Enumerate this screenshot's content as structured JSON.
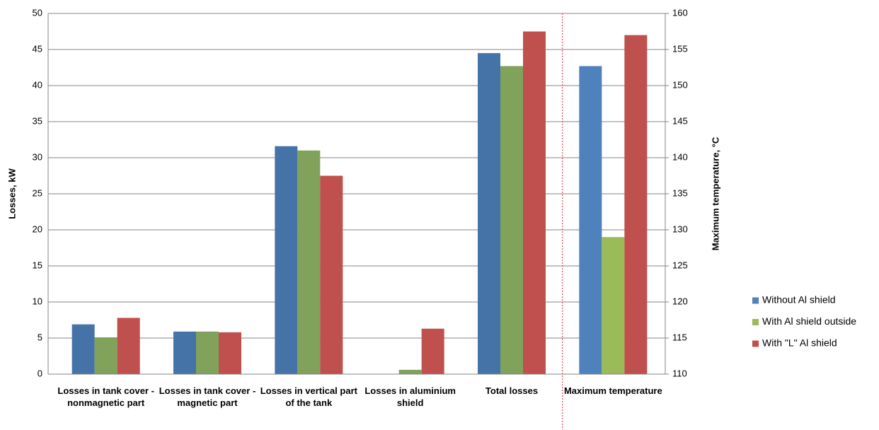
{
  "chart_data": [
    {
      "type": "bar",
      "axis_title": "Losses, kW",
      "categories": [
        "Losses in tank cover  - nonmagnetic part",
        "Losses in tank cover - magnetic part",
        "Losses in vertical part of the tank",
        "Losses in aluminium shield",
        "Total losses"
      ],
      "series": [
        {
          "color": "#4573a7",
          "values": [
            6.9,
            5.9,
            31.6,
            0,
            44.5
          ]
        },
        {
          "color": "#80a25a",
          "values": [
            5.1,
            5.9,
            31.0,
            0.6,
            42.7
          ]
        },
        {
          "color": "#c0504d",
          "values": [
            7.8,
            5.8,
            27.5,
            6.3,
            47.5
          ]
        }
      ],
      "ylim": [
        0,
        50
      ],
      "yticks": [
        0,
        5,
        10,
        15,
        20,
        25,
        30,
        35,
        40,
        45,
        50
      ],
      "grid": true
    },
    {
      "type": "bar",
      "axis_title": "Maximum  temperature, °C",
      "categories": [
        "Maximum temperature"
      ],
      "series": [
        {
          "name": "Without Al shield",
          "color": "#4f81bd",
          "values": [
            152.7
          ],
          "axis": "y2"
        },
        {
          "name": "With Al shield outside",
          "color": "#9bbb59",
          "values": [
            129
          ],
          "axis": "y2"
        },
        {
          "name": "With \"L\" Al shield",
          "color": "#c0504d",
          "values": [
            157
          ],
          "axis": "y2"
        }
      ],
      "y2lim": [
        110,
        160
      ],
      "y2ticks": [
        110,
        115,
        120,
        125,
        130,
        135,
        140,
        145,
        150,
        155,
        160
      ],
      "legend": "right"
    }
  ]
}
